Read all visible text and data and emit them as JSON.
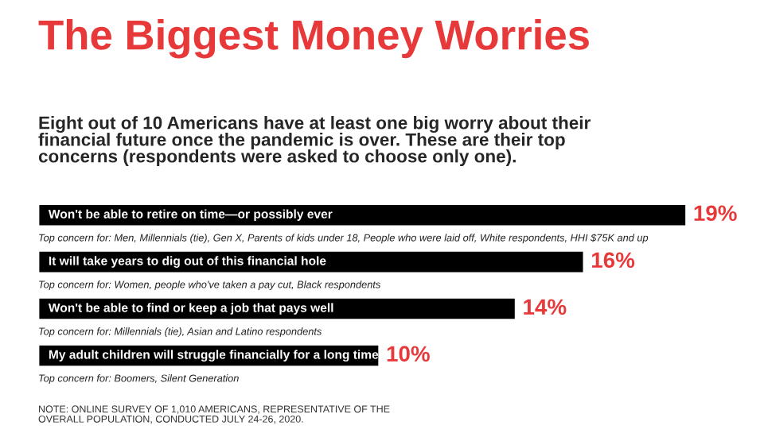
{
  "chart_data": {
    "type": "bar",
    "orientation": "horizontal",
    "title": "The Biggest Money Worries",
    "subtitle": "Eight out of 10 Americans have at least one big worry about their\nfinancial future once the pandemic is over. These are their top\nconcerns (respondents were asked to choose only one).",
    "categories": [
      "Won't be able to retire on time—or possibly ever",
      "It will take years to dig out of this financial hole",
      "Won't be able to find or keep a job that pays well",
      "My adult children will struggle financially for a long time"
    ],
    "values": [
      19,
      16,
      14,
      10
    ],
    "color": "#000000",
    "value_labels": [
      "19%",
      "16%",
      "14%",
      "10%"
    ],
    "annotations": [
      "Top concern for: Men, Millennials (tie), Gen X, Parents of kids under 18, People who were laid off, White respondents, HHI $75K and up",
      "Top concern for: Women, people who've taken a pay cut, Black respondents",
      "Top concern for: Millennials (tie), Asian and Latino respondents",
      "Top concern for: Boomers, Silent Generation",
      "NOTE: ONLINE SURVEY OF 1,010 AMERICANS, REPRESENTATIVE OF THE\nOVERALL POPULATION, CONDUCTED JULY 24-26, 2020."
    ]
  }
}
